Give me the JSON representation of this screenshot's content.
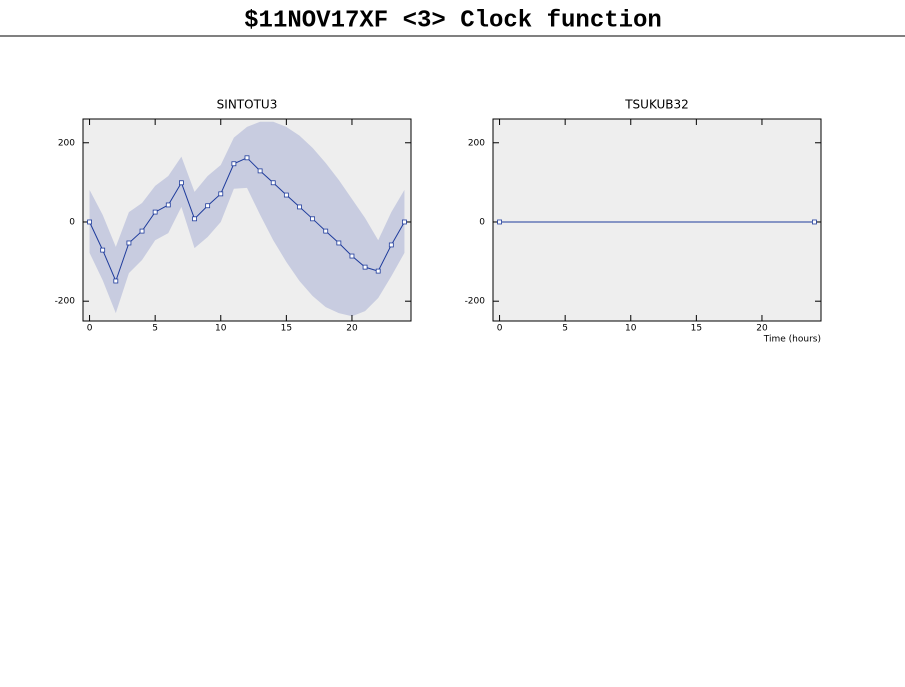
{
  "title": "$11NOV17XF <3>  Clock function",
  "chart_data": [
    {
      "type": "line",
      "title": "SINTOTU3",
      "x": [
        0,
        1,
        2,
        3,
        4,
        5,
        6,
        7,
        8,
        9,
        10,
        11,
        12,
        13,
        14,
        15,
        16,
        17,
        18,
        19,
        20,
        21,
        22,
        23,
        24
      ],
      "values": [
        0,
        -71,
        -149,
        -53,
        -23,
        25,
        43,
        99,
        8,
        41,
        71,
        147,
        162,
        129,
        99,
        68,
        38,
        8,
        -23,
        -53,
        -86,
        -114,
        -124,
        -58,
        0
      ],
      "band": {
        "upper": [
          81,
          18,
          -63,
          25,
          48,
          91,
          116,
          165,
          76,
          116,
          144,
          213,
          240,
          253,
          253,
          240,
          218,
          187,
          149,
          106,
          58,
          10,
          -46,
          25,
          81
        ],
        "lower": [
          -78,
          -147,
          -230,
          -129,
          -96,
          -46,
          -28,
          38,
          -66,
          -38,
          0,
          84,
          86,
          18,
          -46,
          -101,
          -149,
          -187,
          -215,
          -230,
          -238,
          -225,
          -192,
          -137,
          -78
        ],
        "color": "#c8cce0"
      },
      "color": "#1f3c9c",
      "xlim": [
        -0.5,
        24.5
      ],
      "ylim": [
        -250,
        260
      ],
      "xticks": [
        0,
        5,
        10,
        15,
        20
      ],
      "yticks": [
        -200,
        0,
        200
      ]
    },
    {
      "type": "line",
      "title": "TSUKUB32",
      "xlabel": "Time (hours)",
      "x": [
        0,
        24
      ],
      "values": [
        0,
        0
      ],
      "color": "#1f3c9c",
      "xlim": [
        -0.5,
        24.5
      ],
      "ylim": [
        -250,
        260
      ],
      "xticks": [
        0,
        5,
        10,
        15,
        20
      ],
      "yticks": [
        -200,
        0,
        200
      ]
    }
  ]
}
